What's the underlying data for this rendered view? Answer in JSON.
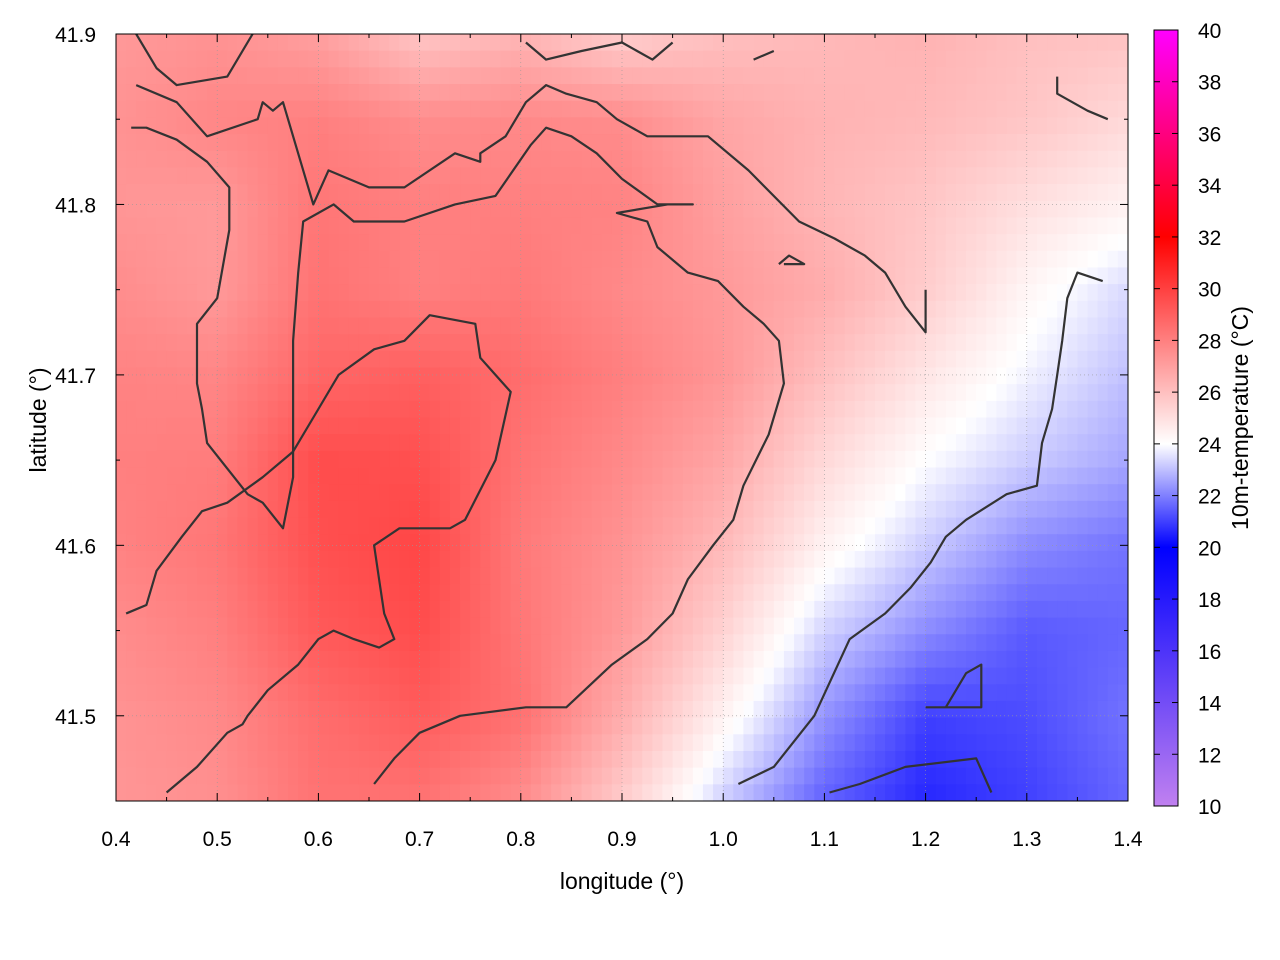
{
  "chart_data": {
    "type": "heatmap",
    "title": "",
    "xlabel": "longitude (°)",
    "ylabel": "latitude (°)",
    "colorbar_label": "10m-temperature (°C)",
    "xlim": [
      0.4,
      1.4
    ],
    "ylim": [
      41.45,
      41.9
    ],
    "x_ticks": [
      0.4,
      0.5,
      0.6,
      0.7,
      0.8,
      0.9,
      1.0,
      1.1,
      1.2,
      1.3,
      1.4
    ],
    "x_tick_labels": [
      "0.4",
      "0.5",
      "0.6",
      "0.7",
      "0.8",
      "0.9",
      "1.0",
      "1.1",
      "1.2",
      "1.3",
      "1.4"
    ],
    "y_ticks": [
      41.5,
      41.6,
      41.7,
      41.8,
      41.9
    ],
    "y_tick_labels": [
      "41.5",
      "41.6",
      "41.7",
      "41.8",
      "41.9"
    ],
    "colorbar_range": [
      10,
      40
    ],
    "colorbar_ticks": [
      10,
      12,
      14,
      16,
      18,
      20,
      22,
      24,
      26,
      28,
      30,
      32,
      34,
      36,
      38,
      40
    ],
    "colorbar_tick_labels": [
      "10",
      "12",
      "14",
      "16",
      "18",
      "20",
      "22",
      "24",
      "26",
      "28",
      "30",
      "32",
      "34",
      "36",
      "38",
      "40"
    ],
    "colormap_stops": [
      {
        "value": 10,
        "color": "#c080f0"
      },
      {
        "value": 20,
        "color": "#0000ff"
      },
      {
        "value": 24,
        "color": "#ffffff"
      },
      {
        "value": 32,
        "color": "#ff0000"
      },
      {
        "value": 40,
        "color": "#ff00ff"
      }
    ],
    "grid": true,
    "contour_color": "#333333",
    "temperature_field": {
      "description_units": "°C",
      "lon": [
        0.4,
        0.5,
        0.6,
        0.7,
        0.8,
        0.9,
        1.0,
        1.1,
        1.2,
        1.3,
        1.4
      ],
      "lat": [
        41.9,
        41.85,
        41.8,
        41.75,
        41.7,
        41.65,
        41.6,
        41.55,
        41.5,
        41.45
      ],
      "values": [
        [
          27.2,
          27.4,
          27.0,
          25.8,
          26.3,
          25.5,
          26.0,
          26.2,
          26.4,
          26.0,
          25.9
        ],
        [
          27.4,
          27.8,
          28.0,
          27.6,
          27.7,
          27.6,
          26.8,
          26.4,
          26.2,
          25.8,
          25.2
        ],
        [
          27.3,
          27.2,
          28.3,
          28.0,
          28.0,
          27.9,
          27.0,
          26.3,
          25.8,
          25.0,
          24.4
        ],
        [
          27.6,
          27.2,
          28.4,
          28.0,
          28.2,
          27.7,
          27.2,
          26.6,
          25.6,
          24.3,
          23.4
        ],
        [
          27.9,
          27.8,
          28.8,
          29.0,
          28.6,
          28.0,
          27.3,
          26.0,
          24.8,
          23.8,
          23.0
        ],
        [
          28.0,
          28.1,
          29.6,
          29.5,
          28.4,
          27.7,
          26.8,
          25.2,
          24.0,
          23.2,
          22.6
        ],
        [
          27.9,
          28.3,
          29.5,
          29.8,
          28.2,
          27.4,
          26.2,
          24.4,
          23.2,
          22.2,
          21.8
        ],
        [
          27.6,
          28.0,
          29.2,
          29.6,
          28.3,
          27.2,
          25.4,
          23.3,
          22.2,
          21.4,
          21.6
        ],
        [
          27.4,
          27.7,
          28.6,
          29.1,
          28.5,
          26.6,
          24.4,
          22.3,
          21.0,
          21.2,
          21.8
        ],
        [
          27.3,
          27.5,
          28.4,
          28.4,
          27.6,
          25.6,
          23.2,
          21.5,
          20.6,
          21.0,
          21.6
        ]
      ]
    },
    "contours": [
      [
        [
          0.42,
          41.87
        ],
        [
          0.46,
          41.86
        ],
        [
          0.49,
          41.84
        ],
        [
          0.54,
          41.85
        ],
        [
          0.545,
          41.86
        ],
        [
          0.555,
          41.855
        ],
        [
          0.565,
          41.86
        ],
        [
          0.595,
          41.8
        ],
        [
          0.61,
          41.82
        ],
        [
          0.65,
          41.81
        ],
        [
          0.685,
          41.81
        ],
        [
          0.735,
          41.83
        ],
        [
          0.76,
          41.825
        ],
        [
          0.76,
          41.83
        ],
        [
          0.785,
          41.84
        ],
        [
          0.805,
          41.86
        ],
        [
          0.825,
          41.87
        ],
        [
          0.845,
          41.865
        ],
        [
          0.875,
          41.86
        ],
        [
          0.895,
          41.85
        ],
        [
          0.925,
          41.84
        ],
        [
          0.985,
          41.84
        ],
        [
          1.025,
          41.82
        ],
        [
          1.075,
          41.79
        ],
        [
          1.11,
          41.78
        ],
        [
          1.14,
          41.77
        ],
        [
          1.16,
          41.76
        ],
        [
          1.18,
          41.74
        ],
        [
          1.2,
          41.725
        ],
        [
          1.2,
          41.75
        ]
      ],
      [
        [
          0.415,
          41.845
        ],
        [
          0.43,
          41.845
        ],
        [
          0.46,
          41.838
        ],
        [
          0.49,
          41.825
        ],
        [
          0.512,
          41.81
        ],
        [
          0.512,
          41.785
        ],
        [
          0.5,
          41.745
        ],
        [
          0.48,
          41.73
        ],
        [
          0.48,
          41.695
        ],
        [
          0.485,
          41.68
        ],
        [
          0.49,
          41.66
        ],
        [
          0.51,
          41.645
        ],
        [
          0.53,
          41.63
        ],
        [
          0.545,
          41.625
        ],
        [
          0.565,
          41.61
        ],
        [
          0.575,
          41.64
        ],
        [
          0.575,
          41.68
        ],
        [
          0.575,
          41.72
        ],
        [
          0.58,
          41.76
        ],
        [
          0.585,
          41.79
        ],
        [
          0.615,
          41.8
        ],
        [
          0.635,
          41.79
        ],
        [
          0.685,
          41.79
        ],
        [
          0.735,
          41.8
        ],
        [
          0.775,
          41.805
        ],
        [
          0.81,
          41.835
        ],
        [
          0.825,
          41.845
        ],
        [
          0.85,
          41.84
        ],
        [
          0.875,
          41.83
        ],
        [
          0.9,
          41.815
        ],
        [
          0.935,
          41.8
        ],
        [
          0.97,
          41.8
        ],
        [
          0.945,
          41.8
        ],
        [
          0.895,
          41.795
        ],
        [
          0.925,
          41.79
        ],
        [
          0.935,
          41.775
        ],
        [
          0.965,
          41.76
        ],
        [
          0.995,
          41.755
        ],
        [
          1.02,
          41.74
        ],
        [
          1.04,
          41.73
        ],
        [
          1.055,
          41.72
        ],
        [
          1.06,
          41.695
        ],
        [
          1.045,
          41.665
        ],
        [
          1.02,
          41.635
        ],
        [
          1.01,
          41.615
        ],
        [
          0.99,
          41.6
        ],
        [
          0.965,
          41.58
        ],
        [
          0.95,
          41.56
        ],
        [
          0.925,
          41.545
        ],
        [
          0.89,
          41.53
        ],
        [
          0.845,
          41.505
        ],
        [
          0.805,
          41.505
        ],
        [
          0.74,
          41.5
        ],
        [
          0.7,
          41.49
        ],
        [
          0.675,
          41.475
        ],
        [
          0.655,
          41.46
        ]
      ],
      [
        [
          0.41,
          41.56
        ],
        [
          0.43,
          41.565
        ],
        [
          0.44,
          41.585
        ],
        [
          0.465,
          41.605
        ],
        [
          0.485,
          41.62
        ],
        [
          0.51,
          41.625
        ],
        [
          0.545,
          41.64
        ],
        [
          0.575,
          41.655
        ],
        [
          0.6,
          41.68
        ],
        [
          0.62,
          41.7
        ],
        [
          0.655,
          41.715
        ],
        [
          0.685,
          41.72
        ],
        [
          0.71,
          41.735
        ],
        [
          0.755,
          41.73
        ],
        [
          0.76,
          41.71
        ],
        [
          0.775,
          41.7
        ],
        [
          0.79,
          41.69
        ],
        [
          0.775,
          41.65
        ],
        [
          0.745,
          41.615
        ],
        [
          0.73,
          41.61
        ],
        [
          0.68,
          41.61
        ],
        [
          0.655,
          41.6
        ],
        [
          0.66,
          41.58
        ],
        [
          0.665,
          41.56
        ],
        [
          0.675,
          41.545
        ],
        [
          0.66,
          41.54
        ],
        [
          0.635,
          41.545
        ],
        [
          0.615,
          41.55
        ],
        [
          0.6,
          41.545
        ],
        [
          0.58,
          41.53
        ],
        [
          0.55,
          41.515
        ],
        [
          0.53,
          41.5
        ],
        [
          0.525,
          41.495
        ],
        [
          0.51,
          41.49
        ],
        [
          0.48,
          41.47
        ],
        [
          0.45,
          41.455
        ]
      ],
      [
        [
          1.33,
          41.875
        ],
        [
          1.33,
          41.865
        ],
        [
          1.36,
          41.855
        ],
        [
          1.38,
          41.85
        ]
      ],
      [
        [
          0.42,
          41.9
        ],
        [
          0.44,
          41.88
        ],
        [
          0.46,
          41.87
        ],
        [
          0.51,
          41.875
        ],
        [
          0.535,
          41.9
        ]
      ],
      [
        [
          0.805,
          41.895
        ],
        [
          0.825,
          41.885
        ],
        [
          0.86,
          41.89
        ],
        [
          0.9,
          41.895
        ],
        [
          0.93,
          41.885
        ],
        [
          0.95,
          41.895
        ]
      ],
      [
        [
          1.03,
          41.885
        ],
        [
          1.05,
          41.89
        ]
      ],
      [
        [
          1.015,
          41.46
        ],
        [
          1.05,
          41.47
        ],
        [
          1.09,
          41.5
        ],
        [
          1.125,
          41.545
        ],
        [
          1.16,
          41.56
        ],
        [
          1.185,
          41.575
        ],
        [
          1.205,
          41.59
        ],
        [
          1.22,
          41.605
        ],
        [
          1.24,
          41.615
        ],
        [
          1.28,
          41.63
        ],
        [
          1.31,
          41.635
        ],
        [
          1.315,
          41.66
        ],
        [
          1.325,
          41.68
        ],
        [
          1.33,
          41.7
        ],
        [
          1.335,
          41.72
        ],
        [
          1.34,
          41.745
        ],
        [
          1.35,
          41.76
        ],
        [
          1.375,
          41.755
        ]
      ],
      [
        [
          1.105,
          41.455
        ],
        [
          1.135,
          41.46
        ],
        [
          1.18,
          41.47
        ],
        [
          1.25,
          41.475
        ],
        [
          1.265,
          41.455
        ]
      ],
      [
        [
          1.2,
          41.505
        ],
        [
          1.22,
          41.505
        ],
        [
          1.24,
          41.525
        ],
        [
          1.255,
          41.53
        ],
        [
          1.255,
          41.505
        ],
        [
          1.22,
          41.505
        ]
      ],
      [
        [
          1.055,
          41.765
        ],
        [
          1.065,
          41.77
        ],
        [
          1.08,
          41.765
        ],
        [
          1.06,
          41.765
        ]
      ]
    ]
  }
}
